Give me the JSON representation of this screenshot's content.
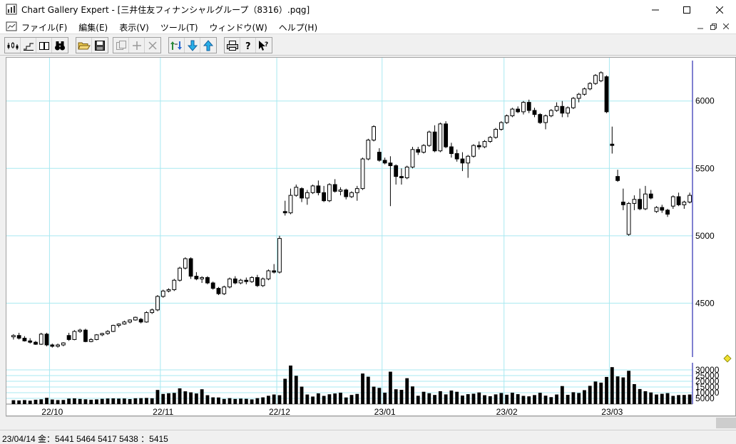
{
  "window": {
    "title": "Chart Gallery Expert - [三井住友フィナンシャルグループ（8316）.pqg]",
    "app_icon": "chart-gallery-icon",
    "controls": [
      "minimize-icon",
      "maximize-icon",
      "close-icon"
    ]
  },
  "menu": {
    "items": [
      {
        "label": "ファイル(F)"
      },
      {
        "label": "編集(E)"
      },
      {
        "label": "表示(V)"
      },
      {
        "label": "ツール(T)"
      },
      {
        "label": "ウィンドウ(W)"
      },
      {
        "label": "ヘルプ(H)"
      }
    ],
    "mdi_controls": [
      "mdi-minimize-icon",
      "mdi-restore-icon",
      "mdi-close-icon"
    ]
  },
  "toolbar": {
    "groups": [
      [
        "candlestick-icon",
        "step-line-icon",
        "dual-chart-icon",
        "binoculars-icon"
      ],
      [
        "open-folder-icon",
        "save-disk-icon"
      ],
      [
        "copy-icon",
        "add-icon",
        "delete-icon"
      ],
      [
        "swap-icon",
        "download-icon",
        "upload-icon"
      ],
      [
        "print-icon",
        "help-icon",
        "context-help-icon"
      ]
    ]
  },
  "colors": {
    "grid": "#a8e8f0",
    "candle": "#000000",
    "axis": "#0000a0",
    "marker": "#f0e030"
  },
  "chart_data": {
    "type": "candlestick",
    "y_axis": {
      "ticks": [
        4500,
        5000,
        5500,
        6000
      ],
      "range": [
        4100,
        6300
      ],
      "position": "right"
    },
    "volume_axis": {
      "ticks": [
        5000,
        10000,
        15000,
        20000,
        25000,
        30000
      ],
      "range": [
        0,
        35000
      ]
    },
    "x_labels": [
      {
        "label": "22/10",
        "index": 7
      },
      {
        "label": "22/11",
        "index": 27
      },
      {
        "label": "22/12",
        "index": 48
      },
      {
        "label": "23/01",
        "index": 67
      },
      {
        "label": "23/02",
        "index": 89
      },
      {
        "label": "23/03",
        "index": 108
      }
    ],
    "candles": [
      [
        4250,
        4270,
        4230,
        4260,
        3400
      ],
      [
        4260,
        4280,
        4230,
        4240,
        3200
      ],
      [
        4240,
        4255,
        4215,
        4220,
        3500
      ],
      [
        4220,
        4240,
        4200,
        4210,
        3000
      ],
      [
        4210,
        4220,
        4190,
        4195,
        3800
      ],
      [
        4195,
        4280,
        4190,
        4270,
        4200
      ],
      [
        4270,
        4280,
        4180,
        4190,
        5500
      ],
      [
        4190,
        4200,
        4170,
        4180,
        4000
      ],
      [
        4180,
        4200,
        4170,
        4190,
        3500
      ],
      [
        4190,
        4210,
        4180,
        4205,
        3600
      ],
      [
        4260,
        4280,
        4220,
        4230,
        4800
      ],
      [
        4230,
        4300,
        4225,
        4290,
        5000
      ],
      [
        4290,
        4310,
        4280,
        4300,
        4500
      ],
      [
        4300,
        4310,
        4210,
        4215,
        4200
      ],
      [
        4215,
        4240,
        4210,
        4230,
        3800
      ],
      [
        4230,
        4270,
        4225,
        4265,
        4100
      ],
      [
        4265,
        4280,
        4255,
        4275,
        4600
      ],
      [
        4275,
        4300,
        4265,
        4290,
        4900
      ],
      [
        4290,
        4340,
        4285,
        4335,
        5000
      ],
      [
        4335,
        4350,
        4320,
        4345,
        4800
      ],
      [
        4345,
        4370,
        4340,
        4360,
        4900
      ],
      [
        4360,
        4380,
        4350,
        4375,
        4400
      ],
      [
        4375,
        4400,
        4370,
        4395,
        5100
      ],
      [
        4380,
        4390,
        4350,
        4360,
        5200
      ],
      [
        4360,
        4440,
        4355,
        4430,
        5400
      ],
      [
        4430,
        4460,
        4420,
        4450,
        5100
      ],
      [
        4450,
        4560,
        4440,
        4550,
        12400
      ],
      [
        4550,
        4600,
        4540,
        4590,
        8900
      ],
      [
        4590,
        4610,
        4580,
        4600,
        9500
      ],
      [
        4600,
        4680,
        4590,
        4670,
        9800
      ],
      [
        4670,
        4770,
        4660,
        4760,
        13800
      ],
      [
        4760,
        4840,
        4750,
        4830,
        11200
      ],
      [
        4830,
        4840,
        4680,
        4700,
        10300
      ],
      [
        4700,
        4730,
        4670,
        4680,
        9300
      ],
      [
        4680,
        4700,
        4650,
        4690,
        13000
      ],
      [
        4690,
        4700,
        4640,
        4650,
        7800
      ],
      [
        4650,
        4660,
        4600,
        4610,
        5900
      ],
      [
        4610,
        4620,
        4560,
        4570,
        5800
      ],
      [
        4570,
        4630,
        4560,
        4620,
        4500
      ],
      [
        4620,
        4690,
        4610,
        4680,
        5200
      ],
      [
        4680,
        4700,
        4640,
        4650,
        4500
      ],
      [
        4650,
        4680,
        4640,
        4670,
        4800
      ],
      [
        4670,
        4690,
        4640,
        4660,
        4600
      ],
      [
        4660,
        4700,
        4650,
        4690,
        4100
      ],
      [
        4690,
        4710,
        4620,
        4630,
        5200
      ],
      [
        4630,
        4690,
        4620,
        4680,
        5900
      ],
      [
        4680,
        4750,
        4670,
        4740,
        7300
      ],
      [
        4740,
        4790,
        4720,
        4730,
        8400
      ],
      [
        4730,
        5000,
        4720,
        4980,
        7800
      ],
      [
        5180,
        5260,
        5150,
        5170,
        22200
      ],
      [
        5170,
        5350,
        5160,
        5300,
        33800
      ],
      [
        5300,
        5380,
        5290,
        5360,
        24800
      ],
      [
        5350,
        5360,
        5250,
        5280,
        15300
      ],
      [
        5280,
        5340,
        5230,
        5320,
        8400
      ],
      [
        5320,
        5380,
        5310,
        5370,
        6600
      ],
      [
        5370,
        5410,
        5300,
        5320,
        9400
      ],
      [
        5320,
        5370,
        5250,
        5260,
        7200
      ],
      [
        5260,
        5390,
        5250,
        5380,
        8600
      ],
      [
        5380,
        5420,
        5320,
        5330,
        9300
      ],
      [
        5330,
        5360,
        5300,
        5340,
        10000
      ],
      [
        5340,
        5350,
        5270,
        5290,
        5800
      ],
      [
        5290,
        5330,
        5280,
        5320,
        8000
      ],
      [
        5320,
        5370,
        5260,
        5350,
        8900
      ],
      [
        5350,
        5580,
        5340,
        5570,
        26800
      ],
      [
        5570,
        5720,
        5560,
        5710,
        24000
      ],
      [
        5710,
        5820,
        5700,
        5810,
        15300
      ],
      [
        5620,
        5650,
        5550,
        5560,
        14200
      ],
      [
        5560,
        5580,
        5530,
        5540,
        10000
      ],
      [
        5540,
        5590,
        5220,
        5520,
        28400
      ],
      [
        5520,
        5530,
        5380,
        5440,
        13000
      ],
      [
        5440,
        5500,
        5380,
        5430,
        12500
      ],
      [
        5430,
        5520,
        5420,
        5510,
        22700
      ],
      [
        5510,
        5660,
        5500,
        5640,
        15500
      ],
      [
        5640,
        5660,
        5600,
        5620,
        7300
      ],
      [
        5620,
        5680,
        5610,
        5670,
        10800
      ],
      [
        5670,
        5780,
        5660,
        5770,
        9500
      ],
      [
        5770,
        5820,
        5620,
        5630,
        8000
      ],
      [
        5630,
        5840,
        5620,
        5830,
        11300
      ],
      [
        5830,
        5850,
        5650,
        5660,
        8500
      ],
      [
        5660,
        5690,
        5580,
        5610,
        11900
      ],
      [
        5610,
        5640,
        5550,
        5570,
        10800
      ],
      [
        5570,
        5620,
        5480,
        5540,
        7500
      ],
      [
        5540,
        5600,
        5430,
        5590,
        8700
      ],
      [
        5590,
        5680,
        5580,
        5670,
        9100
      ],
      [
        5670,
        5700,
        5640,
        5660,
        10200
      ],
      [
        5660,
        5710,
        5650,
        5700,
        7800
      ],
      [
        5700,
        5740,
        5690,
        5730,
        6900
      ],
      [
        5730,
        5800,
        5720,
        5790,
        8500
      ],
      [
        5790,
        5850,
        5780,
        5840,
        9700
      ],
      [
        5840,
        5900,
        5830,
        5890,
        8200
      ],
      [
        5890,
        5950,
        5880,
        5940,
        10000
      ],
      [
        5940,
        5960,
        5910,
        5920,
        8700
      ],
      [
        5920,
        6000,
        5900,
        5990,
        7200
      ],
      [
        5990,
        6010,
        5910,
        5930,
        6800
      ],
      [
        5930,
        5950,
        5880,
        5900,
        7900
      ],
      [
        5900,
        5910,
        5830,
        5840,
        9900
      ],
      [
        5840,
        5900,
        5790,
        5890,
        7400
      ],
      [
        5890,
        5940,
        5880,
        5930,
        6100
      ],
      [
        5930,
        5990,
        5920,
        5960,
        8400
      ],
      [
        5960,
        6000,
        5880,
        5910,
        15800
      ],
      [
        5910,
        5960,
        5880,
        5950,
        8100
      ],
      [
        5950,
        6030,
        5940,
        6020,
        10400
      ],
      [
        6020,
        6060,
        5990,
        6050,
        9700
      ],
      [
        6050,
        6100,
        6040,
        6090,
        12200
      ],
      [
        6090,
        6140,
        6080,
        6130,
        16000
      ],
      [
        6130,
        6200,
        6120,
        6190,
        19800
      ],
      [
        6150,
        6220,
        6140,
        6210,
        18800
      ],
      [
        6180,
        6190,
        5910,
        5920,
        23800
      ],
      [
        5680,
        5810,
        5610,
        5670,
        32400
      ],
      [
        5440,
        5490,
        5400,
        5410,
        24300
      ],
      [
        5250,
        5350,
        5190,
        5230,
        23400
      ],
      [
        5010,
        5250,
        5000,
        5240,
        29200
      ],
      [
        5240,
        5300,
        5190,
        5270,
        17500
      ],
      [
        5270,
        5350,
        5190,
        5200,
        13200
      ],
      [
        5200,
        5370,
        5190,
        5310,
        11300
      ],
      [
        5310,
        5340,
        5270,
        5280,
        10200
      ],
      [
        5180,
        5220,
        5170,
        5210,
        8400
      ],
      [
        5210,
        5230,
        5170,
        5190,
        9000
      ],
      [
        5190,
        5200,
        5140,
        5160,
        9600
      ],
      [
        5220,
        5300,
        5200,
        5290,
        7200
      ],
      [
        5290,
        5320,
        5220,
        5230,
        7900
      ],
      [
        5230,
        5260,
        5200,
        5250,
        8000
      ],
      [
        5250,
        5320,
        5240,
        5300,
        8400
      ]
    ]
  },
  "status": {
    "text": "23/04/14 金：5441 5464 5417 5438 ：5415"
  }
}
